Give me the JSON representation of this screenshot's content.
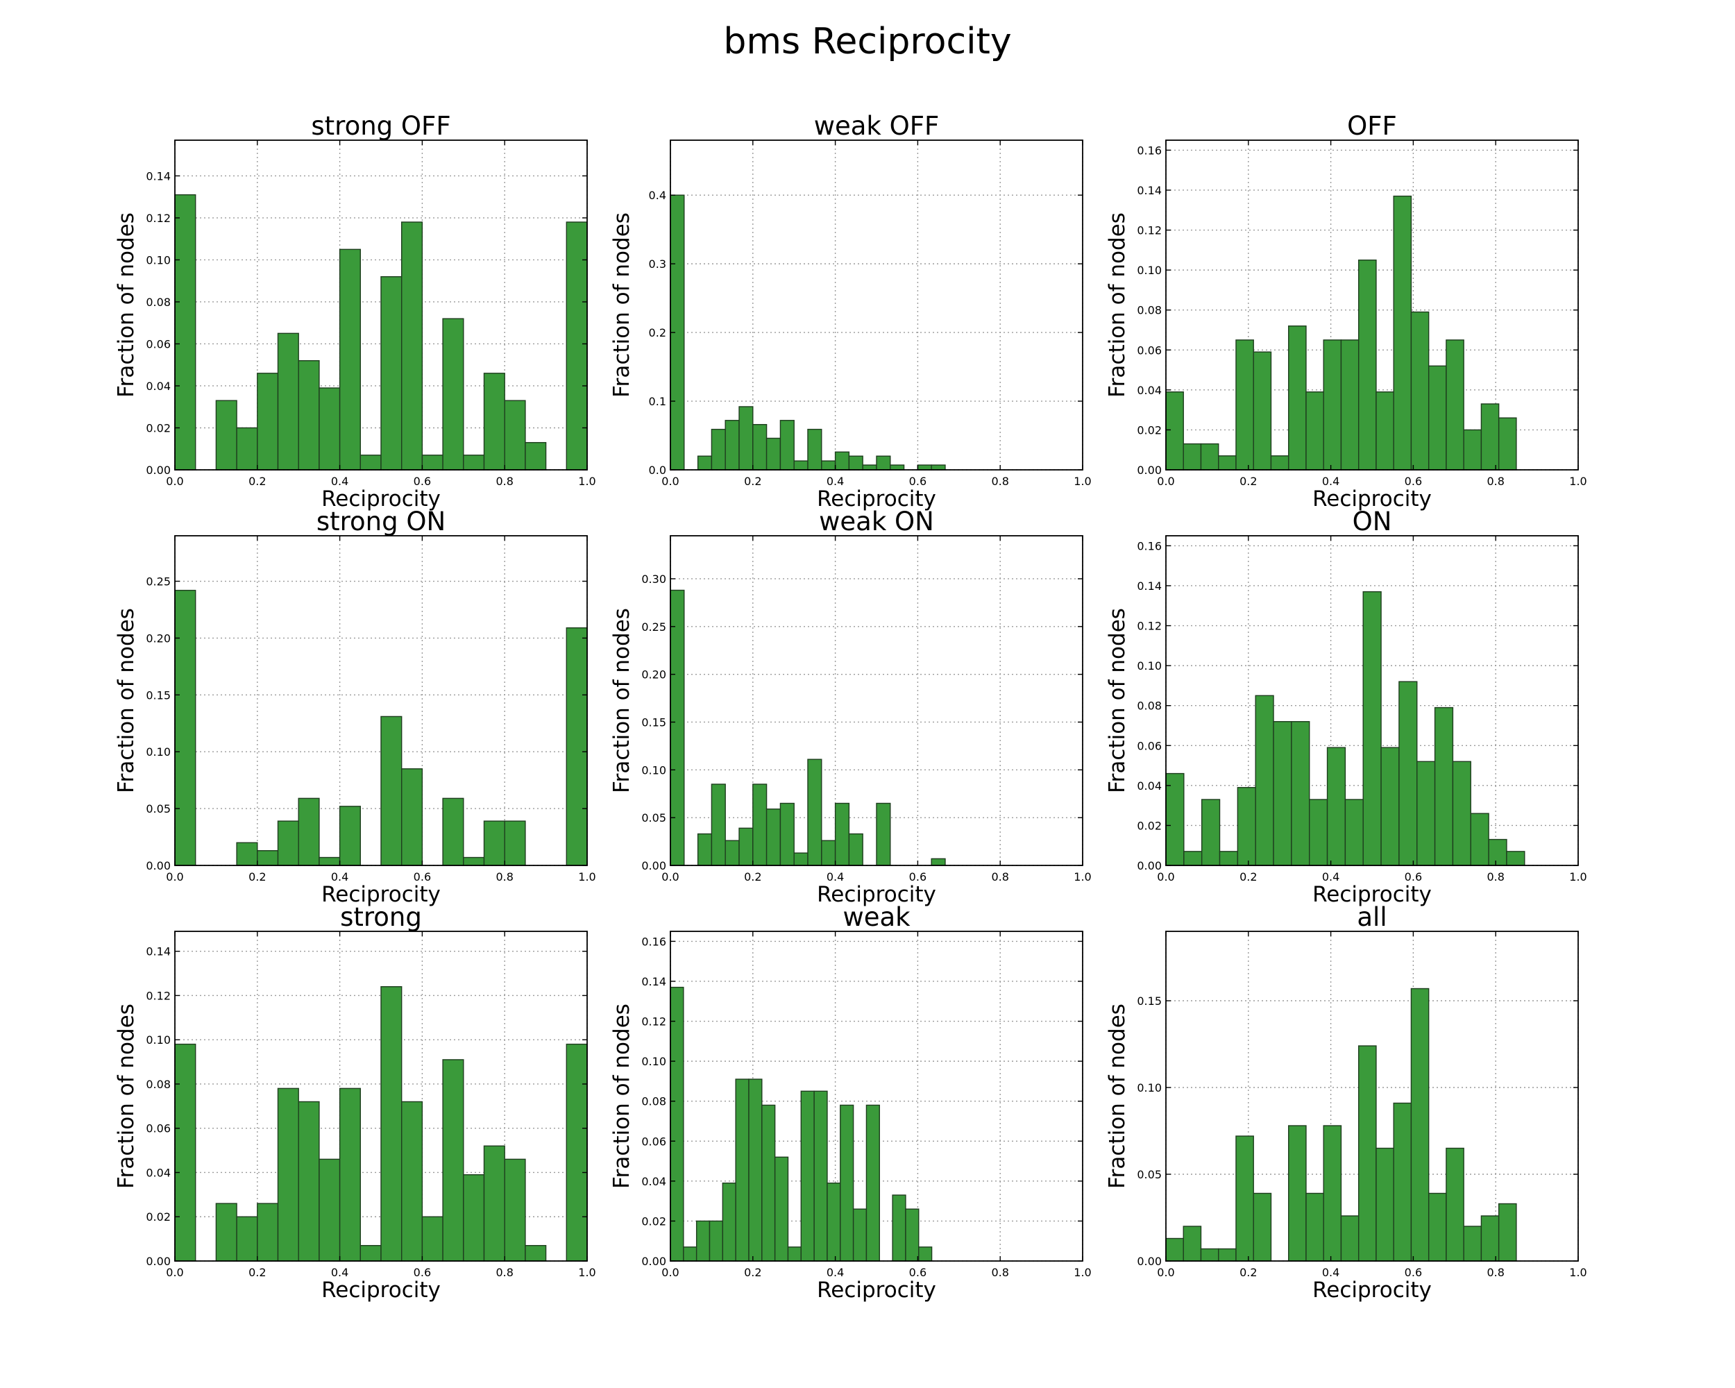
{
  "figure": {
    "title": "bms Reciprocity"
  },
  "colors": {
    "bar_fill": "#3a9a3a",
    "bar_edge": "#1e3d1e",
    "grid": "#9a9a9a",
    "background": "#ffffff"
  },
  "chart_data": [
    {
      "type": "bar",
      "title": "strong OFF",
      "xlabel": "Reciprocity",
      "ylabel": "Fraction of nodes",
      "xlim": [
        0,
        1
      ],
      "ylim": [
        0,
        0.157
      ],
      "grid": true,
      "xticks": [
        0.0,
        0.2,
        0.4,
        0.6,
        0.8,
        1.0
      ],
      "xtick_labels": [
        "0.0",
        "0.2",
        "0.4",
        "0.6",
        "0.8",
        "1.0"
      ],
      "yticks": [
        0,
        0.02,
        0.04,
        0.06,
        0.08,
        0.1,
        0.12,
        0.14
      ],
      "ytick_labels": [
        "0.00",
        "0.02",
        "0.04",
        "0.06",
        "0.08",
        "0.10",
        "0.12",
        "0.14"
      ],
      "bin_width": 0.05,
      "bins_start": [
        0.0,
        0.1,
        0.15,
        0.2,
        0.25,
        0.3,
        0.35,
        0.4,
        0.45,
        0.5,
        0.55,
        0.6,
        0.65,
        0.7,
        0.75,
        0.8,
        0.85,
        0.95
      ],
      "values": [
        0.131,
        0.033,
        0.02,
        0.046,
        0.065,
        0.052,
        0.039,
        0.105,
        0.007,
        0.092,
        0.118,
        0.007,
        0.072,
        0.007,
        0.046,
        0.033,
        0.013,
        0.118
      ]
    },
    {
      "type": "bar",
      "title": "weak OFF",
      "xlabel": "Reciprocity",
      "ylabel": "Fraction of nodes",
      "xlim": [
        0,
        1
      ],
      "ylim": [
        0,
        0.48
      ],
      "grid": true,
      "xticks": [
        0.0,
        0.2,
        0.4,
        0.6,
        0.8,
        1.0
      ],
      "xtick_labels": [
        "0.0",
        "0.2",
        "0.4",
        "0.6",
        "0.8",
        "1.0"
      ],
      "yticks": [
        0,
        0.1,
        0.2,
        0.3,
        0.4
      ],
      "ytick_labels": [
        "0.0",
        "0.1",
        "0.2",
        "0.3",
        "0.4"
      ],
      "bin_width": 0.0333,
      "bins_start": [
        0.0,
        0.0667,
        0.1,
        0.1333,
        0.1667,
        0.2,
        0.2333,
        0.2667,
        0.3,
        0.3333,
        0.3667,
        0.4,
        0.4333,
        0.4667,
        0.5,
        0.5333,
        0.6,
        0.6333
      ],
      "values": [
        0.4,
        0.02,
        0.059,
        0.072,
        0.092,
        0.066,
        0.046,
        0.072,
        0.013,
        0.059,
        0.013,
        0.026,
        0.02,
        0.007,
        0.02,
        0.007,
        0.007,
        0.007
      ]
    },
    {
      "type": "bar",
      "title": "OFF",
      "xlabel": "Reciprocity",
      "ylabel": "Fraction of nodes",
      "xlim": [
        0,
        1
      ],
      "ylim": [
        0,
        0.165
      ],
      "grid": true,
      "xticks": [
        0.0,
        0.2,
        0.4,
        0.6,
        0.8,
        1.0
      ],
      "xtick_labels": [
        "0.0",
        "0.2",
        "0.4",
        "0.6",
        "0.8",
        "1.0"
      ],
      "yticks": [
        0,
        0.02,
        0.04,
        0.06,
        0.08,
        0.1,
        0.12,
        0.14,
        0.16
      ],
      "ytick_labels": [
        "0.00",
        "0.02",
        "0.04",
        "0.06",
        "0.08",
        "0.10",
        "0.12",
        "0.14",
        "0.16"
      ],
      "bin_width": 0.0425,
      "bins_start": [
        0.0,
        0.0425,
        0.085,
        0.1275,
        0.17,
        0.2125,
        0.255,
        0.2975,
        0.34,
        0.3825,
        0.425,
        0.4675,
        0.51,
        0.5525,
        0.595,
        0.6375,
        0.68,
        0.7225,
        0.765,
        0.8075
      ],
      "values": [
        0.039,
        0.013,
        0.013,
        0.007,
        0.065,
        0.059,
        0.007,
        0.072,
        0.039,
        0.065,
        0.065,
        0.105,
        0.039,
        0.137,
        0.079,
        0.052,
        0.065,
        0.02,
        0.033,
        0.026
      ]
    },
    {
      "type": "bar",
      "title": "strong ON",
      "xlabel": "Reciprocity",
      "ylabel": "Fraction of nodes",
      "xlim": [
        0,
        1
      ],
      "ylim": [
        0,
        0.29
      ],
      "grid": true,
      "xticks": [
        0.0,
        0.2,
        0.4,
        0.6,
        0.8,
        1.0
      ],
      "xtick_labels": [
        "0.0",
        "0.2",
        "0.4",
        "0.6",
        "0.8",
        "1.0"
      ],
      "yticks": [
        0,
        0.05,
        0.1,
        0.15,
        0.2,
        0.25
      ],
      "ytick_labels": [
        "0.00",
        "0.05",
        "0.10",
        "0.15",
        "0.20",
        "0.25"
      ],
      "bin_width": 0.05,
      "bins_start": [
        0.0,
        0.15,
        0.2,
        0.25,
        0.3,
        0.35,
        0.4,
        0.5,
        0.55,
        0.65,
        0.7,
        0.75,
        0.8,
        0.95
      ],
      "values": [
        0.242,
        0.02,
        0.013,
        0.039,
        0.059,
        0.007,
        0.052,
        0.131,
        0.085,
        0.059,
        0.007,
        0.039,
        0.039,
        0.209
      ]
    },
    {
      "type": "bar",
      "title": "weak ON",
      "xlabel": "Reciprocity",
      "ylabel": "Fraction of nodes",
      "xlim": [
        0,
        1
      ],
      "ylim": [
        0,
        0.345
      ],
      "grid": true,
      "xticks": [
        0.0,
        0.2,
        0.4,
        0.6,
        0.8,
        1.0
      ],
      "xtick_labels": [
        "0.0",
        "0.2",
        "0.4",
        "0.6",
        "0.8",
        "1.0"
      ],
      "yticks": [
        0,
        0.05,
        0.1,
        0.15,
        0.2,
        0.25,
        0.3
      ],
      "ytick_labels": [
        "0.00",
        "0.05",
        "0.10",
        "0.15",
        "0.20",
        "0.25",
        "0.30"
      ],
      "bin_width": 0.0333,
      "bins_start": [
        0.0,
        0.0667,
        0.1,
        0.1333,
        0.1667,
        0.2,
        0.2333,
        0.2667,
        0.3,
        0.3333,
        0.3667,
        0.4,
        0.4333,
        0.5,
        0.6333
      ],
      "values": [
        0.288,
        0.033,
        0.085,
        0.026,
        0.039,
        0.085,
        0.059,
        0.065,
        0.013,
        0.111,
        0.026,
        0.065,
        0.033,
        0.065,
        0.007
      ]
    },
    {
      "type": "bar",
      "title": "ON",
      "xlabel": "Reciprocity",
      "ylabel": "Fraction of nodes",
      "xlim": [
        0,
        1
      ],
      "ylim": [
        0,
        0.165
      ],
      "grid": true,
      "xticks": [
        0.0,
        0.2,
        0.4,
        0.6,
        0.8,
        1.0
      ],
      "xtick_labels": [
        "0.0",
        "0.2",
        "0.4",
        "0.6",
        "0.8",
        "1.0"
      ],
      "yticks": [
        0,
        0.02,
        0.04,
        0.06,
        0.08,
        0.1,
        0.12,
        0.14,
        0.16
      ],
      "ytick_labels": [
        "0.00",
        "0.02",
        "0.04",
        "0.06",
        "0.08",
        "0.10",
        "0.12",
        "0.14",
        "0.16"
      ],
      "bin_width": 0.0435,
      "bins_start": [
        0.0,
        0.0435,
        0.087,
        0.1305,
        0.174,
        0.2175,
        0.261,
        0.3045,
        0.348,
        0.3915,
        0.435,
        0.4785,
        0.522,
        0.5655,
        0.609,
        0.6525,
        0.696,
        0.7395,
        0.783,
        0.8265
      ],
      "values": [
        0.046,
        0.007,
        0.033,
        0.007,
        0.039,
        0.085,
        0.072,
        0.072,
        0.033,
        0.059,
        0.033,
        0.137,
        0.059,
        0.092,
        0.052,
        0.079,
        0.052,
        0.026,
        0.013,
        0.007
      ]
    },
    {
      "type": "bar",
      "title": "strong",
      "xlabel": "Reciprocity",
      "ylabel": "Fraction of nodes",
      "xlim": [
        0,
        1
      ],
      "ylim": [
        0,
        0.149
      ],
      "grid": true,
      "xticks": [
        0.0,
        0.2,
        0.4,
        0.6,
        0.8,
        1.0
      ],
      "xtick_labels": [
        "0.0",
        "0.2",
        "0.4",
        "0.6",
        "0.8",
        "1.0"
      ],
      "yticks": [
        0,
        0.02,
        0.04,
        0.06,
        0.08,
        0.1,
        0.12,
        0.14
      ],
      "ytick_labels": [
        "0.00",
        "0.02",
        "0.04",
        "0.06",
        "0.08",
        "0.10",
        "0.12",
        "0.14"
      ],
      "bin_width": 0.05,
      "bins_start": [
        0.0,
        0.1,
        0.15,
        0.2,
        0.25,
        0.3,
        0.35,
        0.4,
        0.45,
        0.5,
        0.55,
        0.6,
        0.65,
        0.7,
        0.75,
        0.8,
        0.85,
        0.95
      ],
      "values": [
        0.098,
        0.026,
        0.02,
        0.026,
        0.078,
        0.072,
        0.046,
        0.078,
        0.007,
        0.124,
        0.072,
        0.02,
        0.091,
        0.039,
        0.052,
        0.046,
        0.007,
        0.098
      ]
    },
    {
      "type": "bar",
      "title": "weak",
      "xlabel": "Reciprocity",
      "ylabel": "Fraction of nodes",
      "xlim": [
        0,
        1
      ],
      "ylim": [
        0,
        0.165
      ],
      "grid": true,
      "xticks": [
        0.0,
        0.2,
        0.4,
        0.6,
        0.8,
        1.0
      ],
      "xtick_labels": [
        "0.0",
        "0.2",
        "0.4",
        "0.6",
        "0.8",
        "1.0"
      ],
      "yticks": [
        0,
        0.02,
        0.04,
        0.06,
        0.08,
        0.1,
        0.12,
        0.14,
        0.16
      ],
      "ytick_labels": [
        "0.00",
        "0.02",
        "0.04",
        "0.06",
        "0.08",
        "0.10",
        "0.12",
        "0.14",
        "0.16"
      ],
      "bin_width": 0.0317,
      "bins_start": [
        0.0,
        0.0317,
        0.0634,
        0.0951,
        0.1268,
        0.1585,
        0.1902,
        0.2219,
        0.2536,
        0.2853,
        0.317,
        0.3487,
        0.3804,
        0.4121,
        0.4438,
        0.4755,
        0.5389,
        0.5706,
        0.6023
      ],
      "values": [
        0.137,
        0.007,
        0.02,
        0.02,
        0.039,
        0.091,
        0.091,
        0.078,
        0.052,
        0.007,
        0.085,
        0.085,
        0.039,
        0.078,
        0.026,
        0.078,
        0.033,
        0.026,
        0.007
      ]
    },
    {
      "type": "bar",
      "title": "all",
      "xlabel": "Reciprocity",
      "ylabel": "Fraction of nodes",
      "xlim": [
        0,
        1
      ],
      "ylim": [
        0,
        0.19
      ],
      "grid": true,
      "xticks": [
        0.0,
        0.2,
        0.4,
        0.6,
        0.8,
        1.0
      ],
      "xtick_labels": [
        "0.0",
        "0.2",
        "0.4",
        "0.6",
        "0.8",
        "1.0"
      ],
      "yticks": [
        0,
        0.05,
        0.1,
        0.15
      ],
      "ytick_labels": [
        "0.00",
        "0.05",
        "0.10",
        "0.15"
      ],
      "bin_width": 0.0425,
      "bins_start": [
        0.0,
        0.0425,
        0.085,
        0.1275,
        0.17,
        0.2125,
        0.2975,
        0.34,
        0.3825,
        0.425,
        0.4675,
        0.51,
        0.5525,
        0.595,
        0.6375,
        0.68,
        0.7225,
        0.765,
        0.8075
      ],
      "values": [
        0.013,
        0.02,
        0.007,
        0.007,
        0.072,
        0.039,
        0.078,
        0.039,
        0.078,
        0.026,
        0.124,
        0.065,
        0.091,
        0.157,
        0.039,
        0.065,
        0.02,
        0.026,
        0.033
      ]
    }
  ]
}
